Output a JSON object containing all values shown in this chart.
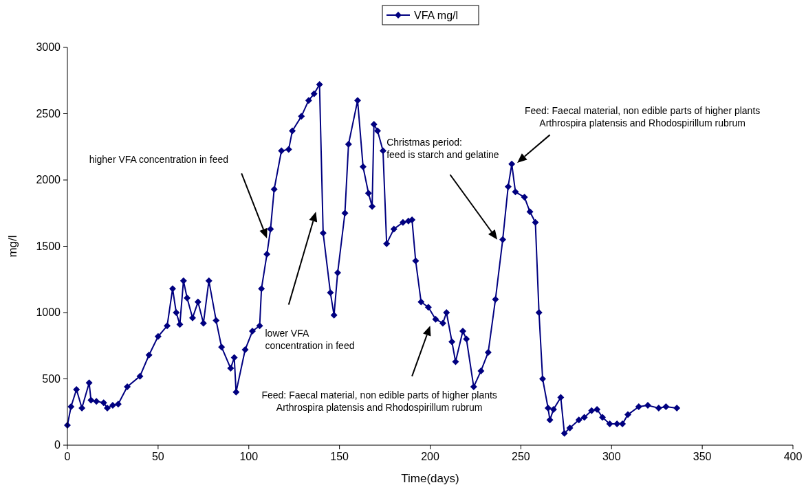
{
  "chart_data": {
    "type": "line",
    "xlabel": "Time(days)",
    "ylabel": "mg/l",
    "xlim": [
      0,
      400
    ],
    "xticks": [
      0,
      50,
      100,
      150,
      200,
      250,
      300,
      350,
      400
    ],
    "ylim": [
      0,
      3000
    ],
    "yticks": [
      0,
      500,
      1000,
      1500,
      2000,
      2500,
      3000
    ],
    "grid": false,
    "legend": "top",
    "marker": "diamond",
    "line_style": "solid",
    "series": [
      {
        "name": "VFA mg/l",
        "color": "#000080",
        "x": [
          0,
          2,
          5,
          8,
          12,
          13,
          16,
          20,
          22,
          25,
          28,
          33,
          40,
          45,
          50,
          55,
          58,
          60,
          62,
          64,
          66,
          69,
          72,
          75,
          78,
          82,
          85,
          90,
          92,
          93,
          98,
          102,
          106,
          107,
          110,
          112,
          114,
          118,
          122,
          124,
          129,
          133,
          136,
          139,
          141,
          145,
          147,
          149,
          153,
          155,
          160,
          163,
          166,
          168,
          169,
          171,
          174,
          176,
          180,
          185,
          188,
          190,
          192,
          195,
          199,
          203,
          207,
          209,
          212,
          214,
          218,
          220,
          224,
          228,
          232,
          236,
          240,
          243,
          245,
          247,
          252,
          255,
          258,
          260,
          262,
          265,
          266,
          268,
          272,
          274,
          277,
          282,
          285,
          289,
          292,
          295,
          299,
          303,
          306,
          309,
          315,
          320,
          326,
          330,
          336
        ],
        "values": [
          150,
          290,
          420,
          280,
          470,
          340,
          330,
          320,
          280,
          300,
          310,
          440,
          520,
          680,
          820,
          900,
          1180,
          1000,
          910,
          1240,
          1110,
          960,
          1080,
          920,
          1240,
          940,
          740,
          580,
          660,
          400,
          720,
          860,
          900,
          1180,
          1440,
          1630,
          1930,
          2220,
          2230,
          2370,
          2480,
          2600,
          2650,
          2720,
          1600,
          1150,
          980,
          1300,
          1750,
          2270,
          2600,
          2100,
          1900,
          1800,
          2420,
          2370,
          2220,
          1520,
          1630,
          1680,
          1690,
          1700,
          1390,
          1080,
          1040,
          950,
          920,
          1000,
          780,
          630,
          860,
          800,
          440,
          560,
          700,
          1100,
          1550,
          1950,
          2120,
          1910,
          1870,
          1760,
          1680,
          1000,
          500,
          280,
          190,
          270,
          360,
          90,
          130,
          190,
          210,
          260,
          270,
          210,
          160,
          160,
          160,
          230,
          290,
          300,
          280,
          290,
          280
        ]
      }
    ],
    "annotations": [
      "higher VFA concentration in feed",
      "lower VFA\nconcentration in feed",
      "Feed: Faecal material, non edible parts of higher plants\nArthrospira platensis and Rhodospirillum rubrum",
      "Christmas period:\nfeed is starch and gelatine",
      "Feed: Faecal material, non edible parts of higher plants\nArthrospira platensis and Rhodospirillum rubrum"
    ]
  }
}
